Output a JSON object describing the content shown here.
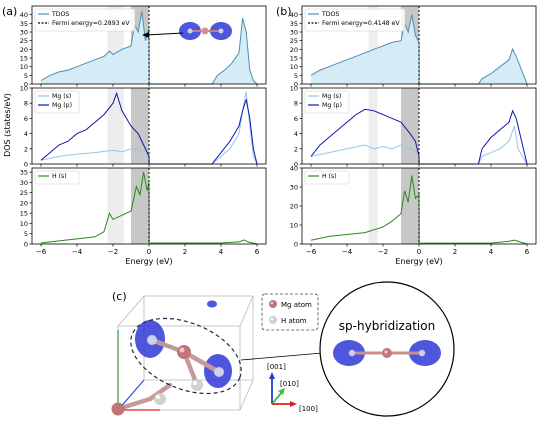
{
  "colors": {
    "tdos_line": "#4e8fb3",
    "tdos_fill": "#d5ebf6",
    "mg_s": "#90c8e6",
    "mg_p": "#1414b4",
    "h_s": "#2a8a1a",
    "band_light": "#e6e6e6",
    "band_dark": "#bdbdbd",
    "fermi": "#000000"
  },
  "panels": [
    {
      "label": "(a)",
      "ylabel": "DOS (states/eV)",
      "xlabel": "Energy (eV)",
      "xticks": [
        "-6",
        "-4",
        "-2",
        "0",
        "2",
        "4",
        "6"
      ],
      "rows": [
        {
          "legend": [
            {
              "text": "TDOS"
            },
            {
              "text": "Fermi energy=0.2893 eV"
            }
          ],
          "yticks": [
            "0",
            "5",
            "10",
            "15",
            "20",
            "25",
            "30",
            "35",
            "40"
          ]
        },
        {
          "legend": [
            {
              "text": "Mg (s)"
            },
            {
              "text": "Mg (p)"
            }
          ],
          "yticks": [
            "0",
            "2",
            "4",
            "6",
            "8",
            "10"
          ]
        },
        {
          "legend": [
            {
              "text": "H (s)"
            }
          ],
          "yticks": [
            "0",
            "5",
            "10",
            "15",
            "20",
            "25",
            "30",
            "35"
          ]
        }
      ]
    },
    {
      "label": "(b)",
      "xlabel": "Energy (eV)",
      "xticks": [
        "-6",
        "-4",
        "-2",
        "0",
        "2",
        "4",
        "6"
      ],
      "rows": [
        {
          "legend": [
            {
              "text": "TDOS"
            },
            {
              "text": "Fermi energy=0.4148 eV"
            }
          ],
          "yticks": [
            "0",
            "5",
            "10",
            "15",
            "20",
            "25",
            "30",
            "35",
            "40"
          ]
        },
        {
          "legend": [
            {
              "text": "Mg (s)"
            },
            {
              "text": "Mg (p)"
            }
          ],
          "yticks": [
            "0",
            "2",
            "4",
            "6",
            "8",
            "10"
          ]
        },
        {
          "legend": [
            {
              "text": "H (s)"
            }
          ],
          "yticks": [
            "0",
            "10",
            "20",
            "30",
            "40"
          ]
        }
      ]
    }
  ],
  "structure": {
    "label": "(c)",
    "legend": [
      {
        "text": "Mg atom"
      },
      {
        "text": "H atom"
      }
    ],
    "axes": [
      "[001]",
      "[010]",
      "[100]"
    ],
    "zoom_label": "sp-hybridization"
  },
  "chart_data": [
    {
      "type": "area",
      "panel": "(a)",
      "xlabel": "Energy (eV)",
      "ylabel": "DOS (states/eV)",
      "xlim": [
        -6.5,
        6.5
      ],
      "fermi_energy": 0.2893,
      "shaded_bands": [
        [
          -2.3,
          -1.4
        ],
        [
          -1.0,
          0.0
        ]
      ],
      "subplots": [
        {
          "ylim": [
            0,
            45
          ],
          "series": [
            {
              "name": "TDOS",
              "x": [
                -6.0,
                -5.5,
                -5.0,
                -4.5,
                -4.0,
                -3.5,
                -3.0,
                -2.5,
                -2.2,
                -2.0,
                -1.5,
                -1.0,
                -0.8,
                -0.6,
                -0.4,
                -0.2,
                0.0,
                0.01,
                3.5,
                3.8,
                4.2,
                4.6,
                5.0,
                5.2,
                5.4,
                5.6,
                5.8,
                6.0
              ],
              "y": [
                2,
                5,
                7,
                8,
                10,
                12,
                14,
                16,
                19,
                17,
                20,
                22,
                34,
                30,
                42,
                25,
                32,
                0,
                0,
                5,
                8,
                12,
                18,
                38,
                30,
                8,
                2,
                0
              ]
            }
          ]
        },
        {
          "ylim": [
            0,
            10
          ],
          "series": [
            {
              "name": "Mg (s)",
              "x": [
                -6.0,
                -5.0,
                -4.0,
                -3.0,
                -2.0,
                -1.5,
                -1.0,
                -0.5,
                0.0,
                0.01,
                3.5,
                4.0,
                4.5,
                5.0,
                5.2,
                5.4,
                5.6,
                5.8,
                6.0
              ],
              "y": [
                0.5,
                1.0,
                1.3,
                1.5,
                1.8,
                1.6,
                2.0,
                1.8,
                1.5,
                0,
                0,
                1.0,
                2.0,
                4.0,
                7.0,
                9.5,
                5.0,
                1.0,
                0
              ]
            },
            {
              "name": "Mg (p)",
              "x": [
                -6.0,
                -5.5,
                -5.0,
                -4.5,
                -4.0,
                -3.5,
                -3.0,
                -2.5,
                -2.0,
                -1.8,
                -1.5,
                -1.0,
                -0.6,
                -0.3,
                0.0,
                0.01,
                3.5,
                4.0,
                4.5,
                5.0,
                5.2,
                5.4,
                5.6,
                5.8,
                6.0
              ],
              "y": [
                0.5,
                1.5,
                2.5,
                3.0,
                4.0,
                4.5,
                5.5,
                6.5,
                8.0,
                9.3,
                7.0,
                5.0,
                4.0,
                2.5,
                1.0,
                0,
                0,
                1.5,
                3.0,
                5.0,
                7.0,
                8.5,
                6.0,
                2.0,
                0
              ]
            }
          ]
        },
        {
          "ylim": [
            0,
            37
          ],
          "series": [
            {
              "name": "H (s)",
              "x": [
                -6.0,
                -5.0,
                -4.0,
                -3.0,
                -2.5,
                -2.2,
                -2.0,
                -1.5,
                -1.0,
                -0.7,
                -0.5,
                -0.3,
                -0.1,
                0.0,
                0.01,
                2.0,
                4.0,
                5.0,
                5.3,
                5.5,
                6.0
              ],
              "y": [
                0.5,
                1.5,
                2.5,
                3.5,
                6,
                15,
                12,
                14,
                16,
                28,
                24,
                35,
                26,
                30,
                0.5,
                0.5,
                0.5,
                1.0,
                2.0,
                1.0,
                0
              ]
            }
          ]
        }
      ]
    },
    {
      "type": "area",
      "panel": "(b)",
      "xlabel": "Energy (eV)",
      "xlim": [
        -6.5,
        6.5
      ],
      "fermi_energy": 0.4148,
      "shaded_bands": [
        [
          -2.8,
          -2.3
        ],
        [
          -1.0,
          0.0
        ]
      ],
      "subplots": [
        {
          "ylim": [
            0,
            45
          ],
          "series": [
            {
              "name": "TDOS",
              "x": [
                -6.0,
                -5.5,
                -5.0,
                -4.5,
                -4.0,
                -3.5,
                -3.0,
                -2.5,
                -2.0,
                -1.5,
                -1.0,
                -0.8,
                -0.6,
                -0.4,
                -0.2,
                0.0,
                0.01,
                3.3,
                3.5,
                4.0,
                4.5,
                5.0,
                5.2,
                5.4,
                6.0
              ],
              "y": [
                5,
                8,
                10,
                12,
                14,
                16,
                18,
                20,
                22,
                24,
                25,
                35,
                30,
                40,
                28,
                24,
                0,
                0,
                3,
                6,
                10,
                14,
                20,
                16,
                0
              ]
            }
          ]
        },
        {
          "ylim": [
            0,
            10
          ],
          "series": [
            {
              "name": "Mg (s)",
              "x": [
                -6.0,
                -5.0,
                -4.0,
                -3.0,
                -2.5,
                -2.0,
                -1.5,
                -1.0,
                -0.5,
                0.0,
                0.01,
                3.3,
                3.5,
                4.0,
                4.5,
                5.0,
                5.3,
                5.5,
                6.0
              ],
              "y": [
                1.0,
                1.5,
                2.0,
                2.5,
                2.0,
                2.3,
                2.0,
                2.5,
                2.0,
                1.5,
                0,
                0,
                1.0,
                1.5,
                2.0,
                3.0,
                5.0,
                2.0,
                0
              ]
            },
            {
              "name": "Mg (p)",
              "x": [
                -6.0,
                -5.5,
                -5.0,
                -4.5,
                -4.0,
                -3.5,
                -3.0,
                -2.5,
                -2.0,
                -1.5,
                -1.0,
                -0.5,
                -0.2,
                0.0,
                0.01,
                3.3,
                3.5,
                4.0,
                4.5,
                5.0,
                5.2,
                5.4,
                6.0
              ],
              "y": [
                1.0,
                2.5,
                3.5,
                4.5,
                5.5,
                6.5,
                7.2,
                7.0,
                6.5,
                6.0,
                5.5,
                4.0,
                3.0,
                1.0,
                0,
                0,
                2.0,
                3.5,
                4.5,
                5.5,
                7.0,
                6.0,
                0
              ]
            }
          ]
        },
        {
          "ylim": [
            0,
            40
          ],
          "series": [
            {
              "name": "H (s)",
              "x": [
                -6.0,
                -5.0,
                -4.0,
                -3.0,
                -2.0,
                -1.5,
                -1.0,
                -0.8,
                -0.6,
                -0.4,
                -0.2,
                0.0,
                0.01,
                3.0,
                4.0,
                5.0,
                5.3,
                6.0
              ],
              "y": [
                2,
                4,
                5,
                6,
                9,
                12,
                16,
                28,
                22,
                36,
                24,
                26,
                0.5,
                0.5,
                0.5,
                1.5,
                2.0,
                0
              ]
            }
          ]
        }
      ]
    }
  ]
}
